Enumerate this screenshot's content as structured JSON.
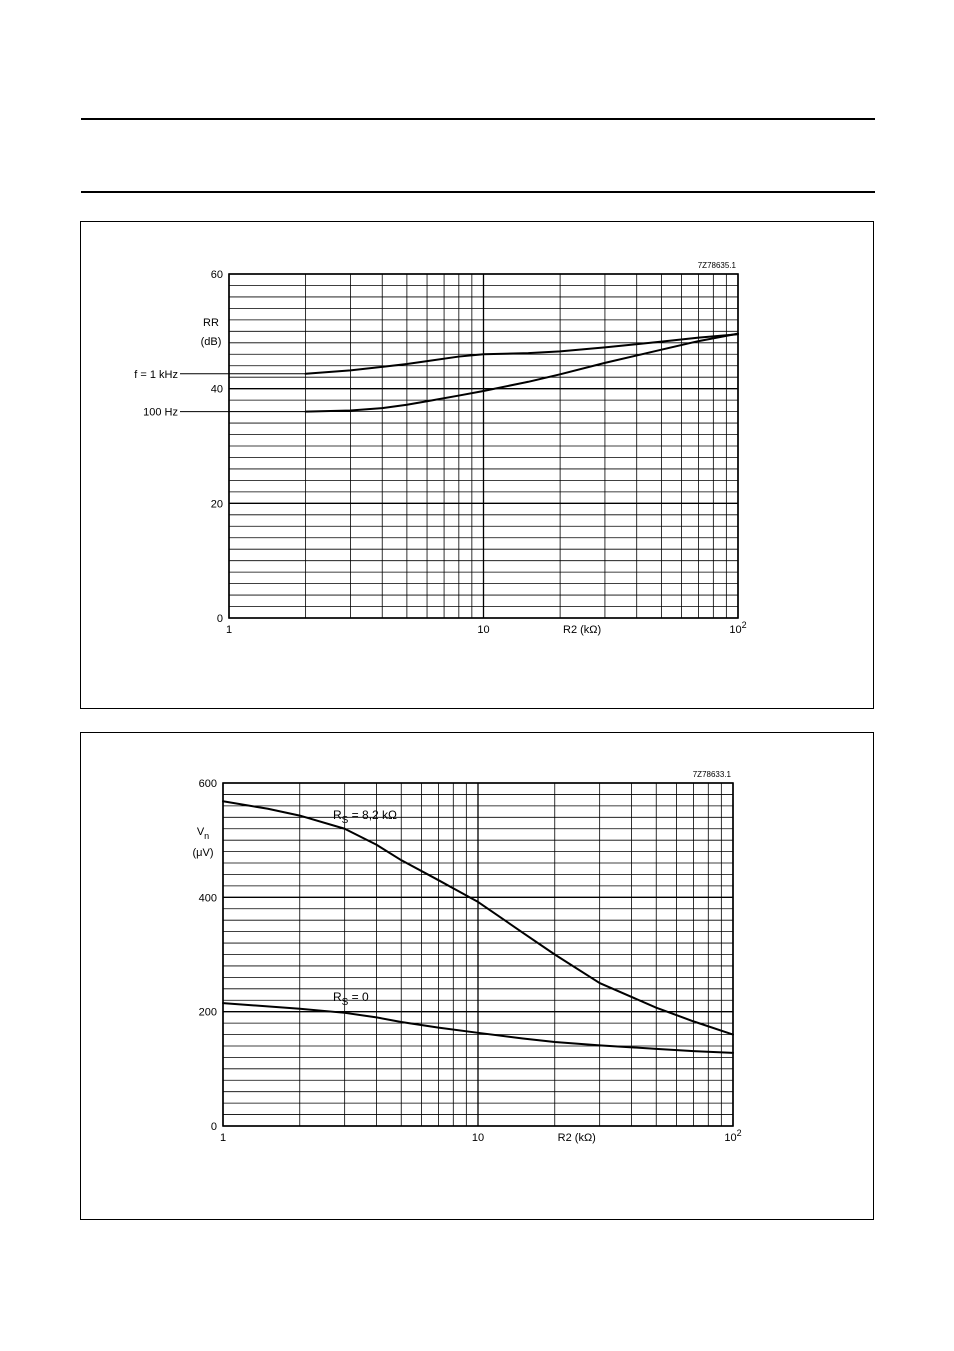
{
  "chart_data": [
    {
      "type": "line",
      "code": "7Z78635.1",
      "ylabel": "RR",
      "yunit": "(dB)",
      "xlabel": "R2 (kΩ)",
      "xscale": "log",
      "xlim": [
        1,
        100
      ],
      "ylim": [
        0,
        60
      ],
      "yticks": [
        0,
        20,
        40,
        60
      ],
      "xticks": [
        {
          "value": 1,
          "label": "1",
          "exp": ""
        },
        {
          "value": 10,
          "label": "10",
          "exp": ""
        },
        {
          "value": 100,
          "label": "10",
          "exp": "2"
        }
      ],
      "grid": true,
      "series": [
        {
          "name": "f = 1 kHz",
          "x": [
            2,
            3,
            4,
            5,
            6,
            8,
            10,
            15,
            20,
            30,
            50,
            70,
            100
          ],
          "y": [
            42.6,
            43.2,
            43.8,
            44.3,
            44.8,
            45.6,
            46.0,
            46.2,
            46.5,
            47.2,
            48.2,
            48.9,
            49.5
          ]
        },
        {
          "name": "100 Hz",
          "x": [
            2,
            3,
            4,
            5,
            6,
            8,
            10,
            15,
            20,
            30,
            50,
            70,
            100
          ],
          "y": [
            36.0,
            36.2,
            36.6,
            37.2,
            37.8,
            38.8,
            39.6,
            41.2,
            42.5,
            44.5,
            46.8,
            48.3,
            49.6
          ]
        }
      ]
    },
    {
      "type": "line",
      "code": "7Z78633.1",
      "ylabel": "V",
      "ylabel_sub": "n",
      "yunit": "(μV)",
      "xlabel": "R2 (kΩ)",
      "xscale": "log",
      "xlim": [
        1,
        100
      ],
      "ylim": [
        0,
        600
      ],
      "yticks": [
        0,
        200,
        400,
        600
      ],
      "xticks": [
        {
          "value": 1,
          "label": "1",
          "exp": ""
        },
        {
          "value": 10,
          "label": "10",
          "exp": ""
        },
        {
          "value": 100,
          "label": "10",
          "exp": "2"
        }
      ],
      "grid": true,
      "series": [
        {
          "name": "R",
          "name_sub": "S",
          "name_rest": " = 8,2 kΩ",
          "x": [
            1,
            1.5,
            2,
            3,
            4,
            5,
            7,
            10,
            15,
            20,
            30,
            50,
            70,
            100
          ],
          "y": [
            568,
            555,
            543,
            520,
            492,
            465,
            430,
            392,
            338,
            300,
            250,
            207,
            183,
            160
          ]
        },
        {
          "name": "R",
          "name_sub": "S",
          "name_rest": " = 0",
          "x": [
            1,
            2,
            3,
            4,
            5,
            7,
            10,
            15,
            20,
            30,
            50,
            70,
            100
          ],
          "y": [
            215,
            205,
            198,
            190,
            182,
            172,
            163,
            153,
            147,
            141,
            135,
            131,
            128
          ]
        }
      ]
    }
  ]
}
